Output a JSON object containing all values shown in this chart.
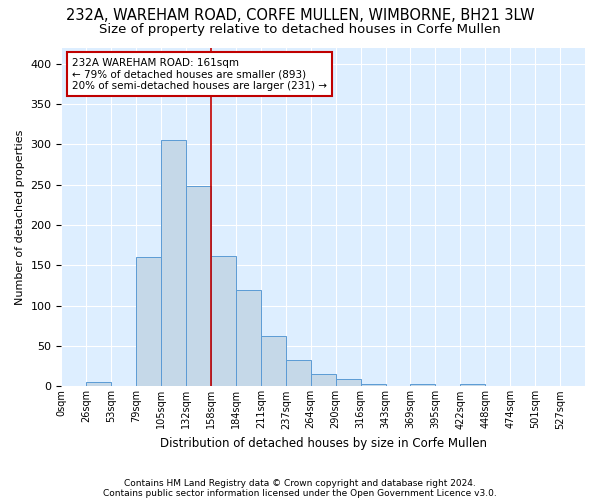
{
  "title1": "232A, WAREHAM ROAD, CORFE MULLEN, WIMBORNE, BH21 3LW",
  "title2": "Size of property relative to detached houses in Corfe Mullen",
  "xlabel": "Distribution of detached houses by size in Corfe Mullen",
  "ylabel": "Number of detached properties",
  "footnote1": "Contains HM Land Registry data © Crown copyright and database right 2024.",
  "footnote2": "Contains public sector information licensed under the Open Government Licence v3.0.",
  "bin_labels": [
    "0sqm",
    "26sqm",
    "53sqm",
    "79sqm",
    "105sqm",
    "132sqm",
    "158sqm",
    "184sqm",
    "211sqm",
    "237sqm",
    "264sqm",
    "290sqm",
    "316sqm",
    "343sqm",
    "369sqm",
    "395sqm",
    "422sqm",
    "448sqm",
    "474sqm",
    "501sqm",
    "527sqm"
  ],
  "bar_values": [
    0,
    5,
    0,
    160,
    305,
    248,
    162,
    120,
    63,
    33,
    15,
    9,
    3,
    0,
    3,
    0,
    3,
    0,
    0,
    0,
    0
  ],
  "bar_color": "#c5d8e8",
  "bar_edge_color": "#5b9bd5",
  "vline_x": 6,
  "vline_color": "#c00000",
  "annotation_line1": "232A WAREHAM ROAD: 161sqm",
  "annotation_line2": "← 79% of detached houses are smaller (893)",
  "annotation_line3": "20% of semi-detached houses are larger (231) →",
  "annotation_box_color": "#c00000",
  "ylim": [
    0,
    420
  ],
  "yticks": [
    0,
    50,
    100,
    150,
    200,
    250,
    300,
    350,
    400
  ],
  "background_color": "#ddeeff",
  "grid_color": "#ffffff",
  "title1_fontsize": 10.5,
  "title2_fontsize": 9.5,
  "fig_bg": "#ffffff"
}
